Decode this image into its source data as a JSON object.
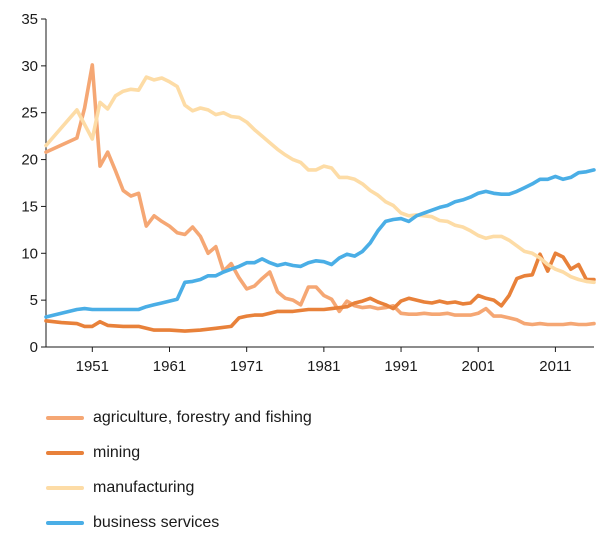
{
  "chart_data": {
    "type": "line",
    "title": "",
    "xlabel": "",
    "ylabel": "",
    "xlim": [
      1945,
      2016
    ],
    "ylim": [
      0,
      35
    ],
    "yticks": [
      0,
      5,
      10,
      15,
      20,
      25,
      30,
      35
    ],
    "xticks": [
      1951,
      1961,
      1971,
      1981,
      1991,
      2001,
      2011
    ],
    "grid": false,
    "legend_position": "bottom",
    "series": [
      {
        "name": "agriculture, forestry and fishing",
        "color": "#f5a774",
        "x": [
          1945,
          1949,
          1950,
          1951,
          1952,
          1953,
          1954,
          1955,
          1956,
          1957,
          1958,
          1959,
          1960,
          1961,
          1962,
          1963,
          1964,
          1965,
          1966,
          1967,
          1968,
          1969,
          1970,
          1971,
          1972,
          1973,
          1974,
          1975,
          1976,
          1977,
          1978,
          1979,
          1980,
          1981,
          1982,
          1983,
          1984,
          1985,
          1986,
          1987,
          1988,
          1989,
          1990,
          1991,
          1992,
          1993,
          1994,
          1995,
          1996,
          1997,
          1998,
          1999,
          2000,
          2001,
          2002,
          2003,
          2004,
          2005,
          2006,
          2007,
          2008,
          2009,
          2010,
          2011,
          2012,
          2013,
          2014,
          2015,
          2016
        ],
        "y": [
          20.8,
          22.3,
          25.5,
          30.1,
          19.3,
          20.8,
          18.8,
          16.7,
          16.1,
          16.4,
          12.9,
          14.0,
          13.4,
          12.9,
          12.2,
          12.0,
          12.8,
          11.8,
          10.0,
          10.7,
          8.1,
          8.9,
          7.4,
          6.2,
          6.5,
          7.3,
          8.0,
          5.9,
          5.2,
          5.0,
          4.5,
          6.4,
          6.4,
          5.5,
          5.1,
          3.8,
          4.9,
          4.4,
          4.2,
          4.3,
          4.1,
          4.2,
          4.4,
          3.6,
          3.5,
          3.5,
          3.6,
          3.5,
          3.5,
          3.6,
          3.4,
          3.4,
          3.4,
          3.6,
          4.1,
          3.3,
          3.3,
          3.1,
          2.9,
          2.5,
          2.4,
          2.5,
          2.4,
          2.4,
          2.4,
          2.5,
          2.4,
          2.4,
          2.5
        ]
      },
      {
        "name": "mining",
        "color": "#e8813a",
        "x": [
          1945,
          1947,
          1949,
          1950,
          1951,
          1952,
          1953,
          1955,
          1957,
          1959,
          1961,
          1963,
          1965,
          1967,
          1969,
          1970,
          1971,
          1972,
          1973,
          1974,
          1975,
          1977,
          1979,
          1981,
          1982,
          1983,
          1984,
          1985,
          1986,
          1987,
          1988,
          1989,
          1990,
          1991,
          1992,
          1993,
          1994,
          1995,
          1996,
          1997,
          1998,
          1999,
          2000,
          2001,
          2002,
          2003,
          2004,
          2005,
          2006,
          2007,
          2008,
          2009,
          2010,
          2011,
          2012,
          2013,
          2014,
          2015,
          2016
        ],
        "y": [
          2.8,
          2.6,
          2.5,
          2.2,
          2.2,
          2.7,
          2.3,
          2.2,
          2.2,
          1.8,
          1.8,
          1.7,
          1.8,
          2.0,
          2.2,
          3.1,
          3.3,
          3.4,
          3.4,
          3.6,
          3.8,
          3.8,
          4.0,
          4.0,
          4.1,
          4.2,
          4.3,
          4.7,
          4.9,
          5.2,
          4.8,
          4.5,
          4.1,
          4.9,
          5.2,
          5.0,
          4.8,
          4.7,
          4.9,
          4.7,
          4.8,
          4.6,
          4.7,
          5.5,
          5.2,
          5.0,
          4.4,
          5.5,
          7.3,
          7.6,
          7.7,
          9.9,
          8.1,
          10.0,
          9.6,
          8.3,
          8.8,
          7.2,
          7.2
        ]
      },
      {
        "name": "manufacturing",
        "color": "#fddca6",
        "x": [
          1945,
          1949,
          1951,
          1952,
          1953,
          1954,
          1955,
          1956,
          1957,
          1958,
          1959,
          1960,
          1961,
          1962,
          1963,
          1964,
          1965,
          1966,
          1967,
          1968,
          1969,
          1970,
          1971,
          1972,
          1973,
          1974,
          1975,
          1976,
          1977,
          1978,
          1979,
          1980,
          1981,
          1982,
          1983,
          1984,
          1985,
          1986,
          1987,
          1988,
          1989,
          1990,
          1991,
          1992,
          1993,
          1994,
          1995,
          1996,
          1997,
          1998,
          1999,
          2000,
          2001,
          2002,
          2003,
          2004,
          2005,
          2006,
          2007,
          2008,
          2009,
          2010,
          2011,
          2012,
          2013,
          2014,
          2015,
          2016
        ],
        "y": [
          21.5,
          25.3,
          22.2,
          26.1,
          25.4,
          26.8,
          27.3,
          27.5,
          27.4,
          28.8,
          28.5,
          28.7,
          28.3,
          27.8,
          25.8,
          25.2,
          25.5,
          25.3,
          24.8,
          25.0,
          24.6,
          24.5,
          24.0,
          23.2,
          22.5,
          21.8,
          21.1,
          20.5,
          20.0,
          19.7,
          18.9,
          18.9,
          19.3,
          19.1,
          18.1,
          18.1,
          17.9,
          17.4,
          16.7,
          16.2,
          15.5,
          15.1,
          14.3,
          14.0,
          14.1,
          14.0,
          13.9,
          13.5,
          13.4,
          13.0,
          12.8,
          12.4,
          11.9,
          11.6,
          11.8,
          11.8,
          11.4,
          10.8,
          10.2,
          10.0,
          9.5,
          8.8,
          8.3,
          8.0,
          7.5,
          7.2,
          7.0,
          6.9
        ]
      },
      {
        "name": "business services",
        "color": "#4aaee6",
        "x": [
          1945,
          1947,
          1949,
          1950,
          1951,
          1953,
          1955,
          1957,
          1958,
          1959,
          1960,
          1961,
          1962,
          1963,
          1964,
          1965,
          1966,
          1967,
          1968,
          1969,
          1970,
          1971,
          1972,
          1973,
          1974,
          1975,
          1976,
          1977,
          1978,
          1979,
          1980,
          1981,
          1982,
          1983,
          1984,
          1985,
          1986,
          1987,
          1988,
          1989,
          1990,
          1991,
          1992,
          1993,
          1994,
          1995,
          1996,
          1997,
          1998,
          1999,
          2000,
          2001,
          2002,
          2003,
          2004,
          2005,
          2006,
          2007,
          2008,
          2009,
          2010,
          2011,
          2012,
          2013,
          2014,
          2015,
          2016
        ],
        "y": [
          3.2,
          3.6,
          4.0,
          4.1,
          4.0,
          4.0,
          4.0,
          4.0,
          4.3,
          4.5,
          4.7,
          4.9,
          5.1,
          6.9,
          7.0,
          7.2,
          7.6,
          7.6,
          8.0,
          8.3,
          8.6,
          9.0,
          9.0,
          9.4,
          9.0,
          8.7,
          8.9,
          8.7,
          8.6,
          9.0,
          9.2,
          9.1,
          8.8,
          9.5,
          9.9,
          9.7,
          10.2,
          11.1,
          12.4,
          13.4,
          13.6,
          13.7,
          13.4,
          14.0,
          14.3,
          14.6,
          14.9,
          15.1,
          15.5,
          15.7,
          16.0,
          16.4,
          16.6,
          16.4,
          16.3,
          16.3,
          16.6,
          17.0,
          17.4,
          17.9,
          17.9,
          18.2,
          17.9,
          18.1,
          18.6,
          18.7,
          18.9
        ]
      }
    ]
  }
}
